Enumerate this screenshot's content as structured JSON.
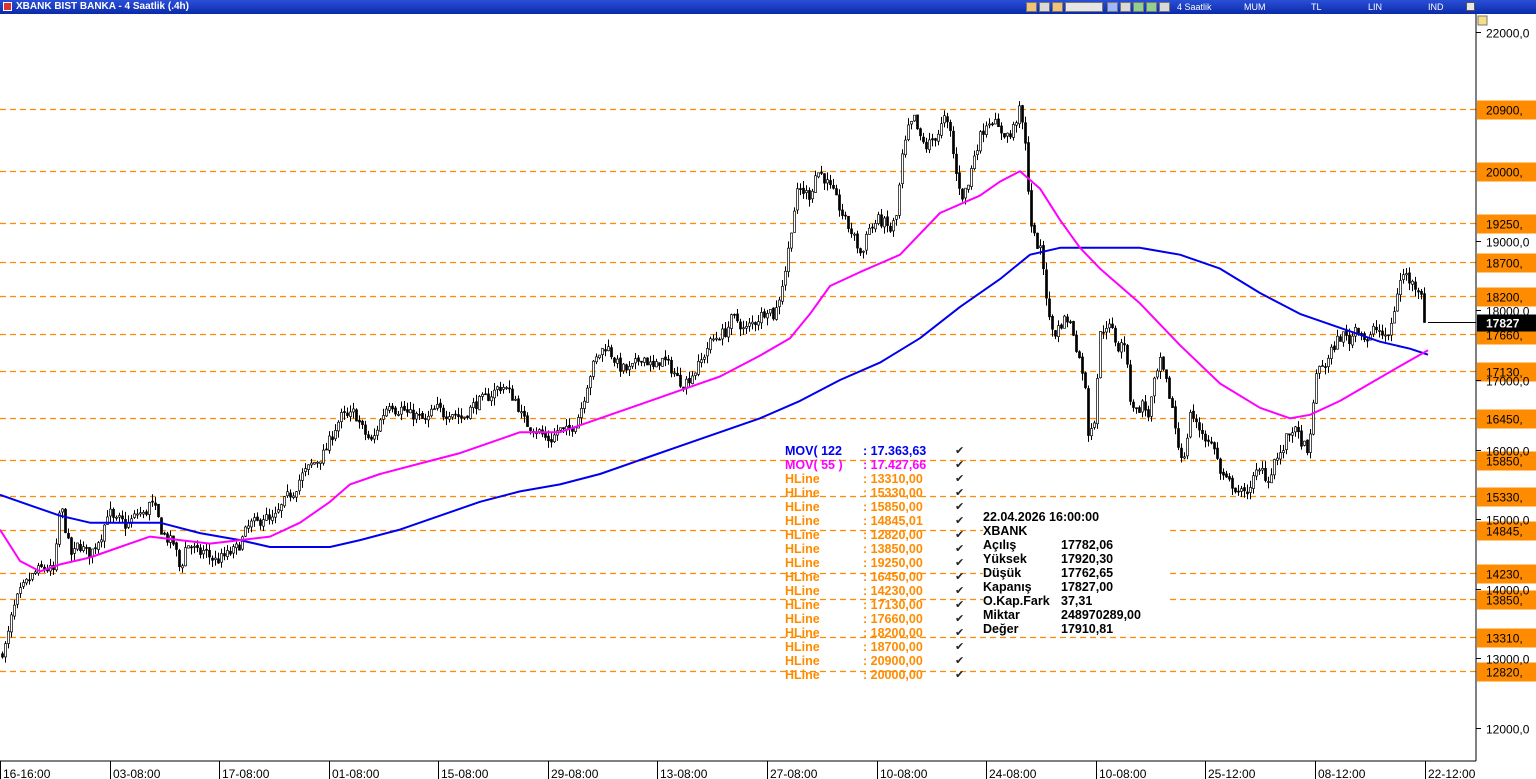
{
  "window": {
    "title": "XBANK BIST BANKA - 4 Saatlik (.4h)",
    "toolbar_labels": [
      "4 Saatlik",
      "MUM",
      "TL",
      "LIN",
      "IND"
    ]
  },
  "chart_data": {
    "type": "candlestick",
    "ylim": [
      11700,
      22150
    ],
    "ticks_right": [
      "22000,0",
      "19000,0",
      "18000,0",
      "17000,0",
      "16000,0",
      "15000,0",
      "14000,0",
      "13000,0",
      "12000,0"
    ],
    "tick_values": [
      22000,
      19000,
      18000,
      17000,
      16000,
      15000,
      14000,
      13000,
      12000
    ],
    "x_labels": [
      "16-16:00",
      "03-08:00",
      "17-08:00",
      "01-08:00",
      "15-08:00",
      "29-08:00",
      "13-08:00",
      "27-08:00",
      "10-08:00",
      "24-08:00",
      "10-08:00",
      "25-12:00",
      "08-12:00",
      "22-12:00"
    ],
    "last_price": {
      "value": 17827,
      "label": "17827"
    },
    "hlines": [
      {
        "value": 20900,
        "label": "20900,"
      },
      {
        "value": 20000,
        "label": "20000,"
      },
      {
        "value": 19250,
        "label": "19250,"
      },
      {
        "value": 18700,
        "label": "18700,"
      },
      {
        "value": 18200,
        "label": "18200,"
      },
      {
        "value": 17660,
        "label": "17660,"
      },
      {
        "value": 17130,
        "label": "17130,"
      },
      {
        "value": 16450,
        "label": "16450,"
      },
      {
        "value": 15850,
        "label": "15850,"
      },
      {
        "value": 15330,
        "label": "15330,"
      },
      {
        "value": 14845,
        "label": "14845,"
      },
      {
        "value": 14230,
        "label": "14230,"
      },
      {
        "value": 13850,
        "label": "13850,"
      },
      {
        "value": 13310,
        "label": "13310,"
      },
      {
        "value": 12820,
        "label": "12820,"
      }
    ],
    "price_path": [
      [
        0,
        13050
      ],
      [
        6,
        13200
      ],
      [
        12,
        13650
      ],
      [
        18,
        13900
      ],
      [
        24,
        14050
      ],
      [
        30,
        14150
      ],
      [
        36,
        14250
      ],
      [
        42,
        14300
      ],
      [
        48,
        14280
      ],
      [
        54,
        14250
      ],
      [
        58,
        14900
      ],
      [
        60,
        15250
      ],
      [
        64,
        14950
      ],
      [
        68,
        14650
      ],
      [
        72,
        14450
      ],
      [
        78,
        14650
      ],
      [
        84,
        14550
      ],
      [
        90,
        14500
      ],
      [
        96,
        14650
      ],
      [
        102,
        14800
      ],
      [
        108,
        15150
      ],
      [
        114,
        14950
      ],
      [
        120,
        15000
      ],
      [
        126,
        14900
      ],
      [
        132,
        15000
      ],
      [
        138,
        15100
      ],
      [
        144,
        15050
      ],
      [
        150,
        15250
      ],
      [
        156,
        15100
      ],
      [
        162,
        14800
      ],
      [
        168,
        14700
      ],
      [
        174,
        14650
      ],
      [
        180,
        14250
      ],
      [
        186,
        14650
      ],
      [
        192,
        14600
      ],
      [
        198,
        14500
      ],
      [
        204,
        14550
      ],
      [
        210,
        14450
      ],
      [
        216,
        14400
      ],
      [
        222,
        14450
      ],
      [
        228,
        14500
      ],
      [
        234,
        14550
      ],
      [
        240,
        14650
      ],
      [
        246,
        14850
      ],
      [
        252,
        14950
      ],
      [
        258,
        14950
      ],
      [
        264,
        15050
      ],
      [
        270,
        14950
      ],
      [
        276,
        15050
      ],
      [
        282,
        15200
      ],
      [
        288,
        15350
      ],
      [
        294,
        15400
      ],
      [
        300,
        15600
      ],
      [
        306,
        15700
      ],
      [
        312,
        15800
      ],
      [
        318,
        15850
      ],
      [
        324,
        15950
      ],
      [
        330,
        16150
      ],
      [
        336,
        16350
      ],
      [
        342,
        16500
      ],
      [
        348,
        16450
      ],
      [
        354,
        16550
      ],
      [
        360,
        16350
      ],
      [
        366,
        16200
      ],
      [
        372,
        16100
      ],
      [
        378,
        16350
      ],
      [
        384,
        16550
      ],
      [
        390,
        16700
      ],
      [
        396,
        16550
      ],
      [
        402,
        16600
      ],
      [
        408,
        16500
      ],
      [
        414,
        16500
      ],
      [
        420,
        16450
      ],
      [
        426,
        16400
      ],
      [
        432,
        16550
      ],
      [
        438,
        16600
      ],
      [
        444,
        16500
      ],
      [
        450,
        16550
      ],
      [
        456,
        16500
      ],
      [
        462,
        16450
      ],
      [
        468,
        16550
      ],
      [
        474,
        16650
      ],
      [
        480,
        16700
      ],
      [
        486,
        16750
      ],
      [
        492,
        16800
      ],
      [
        498,
        16900
      ],
      [
        504,
        16900
      ],
      [
        510,
        16800
      ],
      [
        516,
        16700
      ],
      [
        522,
        16450
      ],
      [
        528,
        16350
      ],
      [
        534,
        16300
      ],
      [
        540,
        16250
      ],
      [
        546,
        16150
      ],
      [
        552,
        16150
      ],
      [
        558,
        16300
      ],
      [
        564,
        16250
      ],
      [
        570,
        16300
      ],
      [
        576,
        16400
      ],
      [
        582,
        16650
      ],
      [
        588,
        17000
      ],
      [
        594,
        17250
      ],
      [
        600,
        17400
      ],
      [
        606,
        17500
      ],
      [
        612,
        17350
      ],
      [
        618,
        17200
      ],
      [
        624,
        17150
      ],
      [
        630,
        17150
      ],
      [
        636,
        17250
      ],
      [
        642,
        17350
      ],
      [
        648,
        17250
      ],
      [
        654,
        17150
      ],
      [
        660,
        17300
      ],
      [
        666,
        17250
      ],
      [
        672,
        17150
      ],
      [
        678,
        17000
      ],
      [
        684,
        16950
      ],
      [
        690,
        17050
      ],
      [
        696,
        17150
      ],
      [
        702,
        17300
      ],
      [
        708,
        17500
      ],
      [
        714,
        17600
      ],
      [
        720,
        17650
      ],
      [
        726,
        17700
      ],
      [
        732,
        17900
      ],
      [
        738,
        17850
      ],
      [
        744,
        17700
      ],
      [
        750,
        17800
      ],
      [
        756,
        17850
      ],
      [
        762,
        17950
      ],
      [
        768,
        18050
      ],
      [
        774,
        17900
      ],
      [
        780,
        18250
      ],
      [
        786,
        18650
      ],
      [
        792,
        19300
      ],
      [
        798,
        19750
      ],
      [
        804,
        19700
      ],
      [
        810,
        19650
      ],
      [
        816,
        20000
      ],
      [
        822,
        19950
      ],
      [
        828,
        19800
      ],
      [
        834,
        19650
      ],
      [
        840,
        19450
      ],
      [
        846,
        19250
      ],
      [
        852,
        19100
      ],
      [
        858,
        18900
      ],
      [
        862,
        18750
      ],
      [
        866,
        19150
      ],
      [
        872,
        19200
      ],
      [
        878,
        19300
      ],
      [
        884,
        19250
      ],
      [
        890,
        19150
      ],
      [
        896,
        19350
      ],
      [
        902,
        20200
      ],
      [
        908,
        20600
      ],
      [
        914,
        20750
      ],
      [
        920,
        20450
      ],
      [
        926,
        20350
      ],
      [
        932,
        20450
      ],
      [
        938,
        20550
      ],
      [
        944,
        20750
      ],
      [
        950,
        20550
      ],
      [
        956,
        19950
      ],
      [
        962,
        19650
      ],
      [
        968,
        19800
      ],
      [
        974,
        20250
      ],
      [
        980,
        20500
      ],
      [
        986,
        20700
      ],
      [
        992,
        20750
      ],
      [
        998,
        20600
      ],
      [
        1004,
        20550
      ],
      [
        1010,
        20500
      ],
      [
        1016,
        20750
      ],
      [
        1020,
        20900
      ],
      [
        1026,
        20250
      ],
      [
        1030,
        19300
      ],
      [
        1034,
        19050
      ],
      [
        1040,
        18850
      ],
      [
        1044,
        18550
      ],
      [
        1048,
        17900
      ],
      [
        1054,
        17650
      ],
      [
        1060,
        17800
      ],
      [
        1066,
        17900
      ],
      [
        1072,
        17750
      ],
      [
        1078,
        17350
      ],
      [
        1084,
        17050
      ],
      [
        1088,
        16250
      ],
      [
        1094,
        16450
      ],
      [
        1100,
        17650
      ],
      [
        1106,
        17800
      ],
      [
        1112,
        17700
      ],
      [
        1118,
        17450
      ],
      [
        1124,
        17550
      ],
      [
        1130,
        16750
      ],
      [
        1136,
        16550
      ],
      [
        1142,
        16650
      ],
      [
        1148,
        16500
      ],
      [
        1154,
        16950
      ],
      [
        1160,
        17250
      ],
      [
        1166,
        16950
      ],
      [
        1172,
        16600
      ],
      [
        1178,
        16050
      ],
      [
        1184,
        15850
      ],
      [
        1190,
        16550
      ],
      [
        1196,
        16350
      ],
      [
        1202,
        16250
      ],
      [
        1208,
        16100
      ],
      [
        1214,
        16050
      ],
      [
        1220,
        15650
      ],
      [
        1226,
        15550
      ],
      [
        1232,
        15500
      ],
      [
        1238,
        15400
      ],
      [
        1244,
        15350
      ],
      [
        1250,
        15500
      ],
      [
        1256,
        15650
      ],
      [
        1262,
        15700
      ],
      [
        1268,
        15550
      ],
      [
        1274,
        15850
      ],
      [
        1280,
        15900
      ],
      [
        1286,
        16150
      ],
      [
        1292,
        16300
      ],
      [
        1298,
        16200
      ],
      [
        1304,
        16050
      ],
      [
        1308,
        15850
      ],
      [
        1314,
        16900
      ],
      [
        1320,
        17250
      ],
      [
        1326,
        17200
      ],
      [
        1332,
        17450
      ],
      [
        1338,
        17600
      ],
      [
        1344,
        17650
      ],
      [
        1350,
        17550
      ],
      [
        1356,
        17800
      ],
      [
        1362,
        17650
      ],
      [
        1368,
        17550
      ],
      [
        1374,
        17750
      ],
      [
        1380,
        17700
      ],
      [
        1386,
        17550
      ],
      [
        1392,
        17850
      ],
      [
        1398,
        18350
      ],
      [
        1404,
        18550
      ],
      [
        1410,
        18400
      ],
      [
        1416,
        18350
      ],
      [
        1422,
        18250
      ],
      [
        1426,
        17830
      ]
    ],
    "ma122_path": [
      [
        0,
        15350
      ],
      [
        30,
        15200
      ],
      [
        60,
        15050
      ],
      [
        90,
        14950
      ],
      [
        120,
        14950
      ],
      [
        160,
        14950
      ],
      [
        200,
        14800
      ],
      [
        240,
        14700
      ],
      [
        270,
        14600
      ],
      [
        300,
        14600
      ],
      [
        330,
        14600
      ],
      [
        360,
        14700
      ],
      [
        400,
        14850
      ],
      [
        440,
        15050
      ],
      [
        480,
        15250
      ],
      [
        520,
        15400
      ],
      [
        560,
        15500
      ],
      [
        600,
        15650
      ],
      [
        640,
        15850
      ],
      [
        680,
        16050
      ],
      [
        720,
        16250
      ],
      [
        760,
        16450
      ],
      [
        800,
        16700
      ],
      [
        840,
        17000
      ],
      [
        880,
        17250
      ],
      [
        920,
        17600
      ],
      [
        960,
        18050
      ],
      [
        1000,
        18450
      ],
      [
        1030,
        18800
      ],
      [
        1060,
        18900
      ],
      [
        1100,
        18900
      ],
      [
        1140,
        18900
      ],
      [
        1180,
        18800
      ],
      [
        1220,
        18600
      ],
      [
        1260,
        18250
      ],
      [
        1300,
        17950
      ],
      [
        1340,
        17750
      ],
      [
        1380,
        17550
      ],
      [
        1410,
        17450
      ],
      [
        1428,
        17363
      ]
    ],
    "ma55_path": [
      [
        0,
        14850
      ],
      [
        20,
        14400
      ],
      [
        40,
        14250
      ],
      [
        60,
        14350
      ],
      [
        90,
        14450
      ],
      [
        120,
        14600
      ],
      [
        150,
        14750
      ],
      [
        180,
        14700
      ],
      [
        210,
        14650
      ],
      [
        240,
        14700
      ],
      [
        270,
        14750
      ],
      [
        300,
        14950
      ],
      [
        330,
        15250
      ],
      [
        350,
        15500
      ],
      [
        380,
        15650
      ],
      [
        420,
        15800
      ],
      [
        460,
        15950
      ],
      [
        500,
        16150
      ],
      [
        520,
        16250
      ],
      [
        560,
        16250
      ],
      [
        600,
        16450
      ],
      [
        640,
        16650
      ],
      [
        680,
        16850
      ],
      [
        720,
        17050
      ],
      [
        760,
        17350
      ],
      [
        790,
        17600
      ],
      [
        810,
        17950
      ],
      [
        830,
        18350
      ],
      [
        860,
        18550
      ],
      [
        900,
        18800
      ],
      [
        940,
        19400
      ],
      [
        980,
        19650
      ],
      [
        1000,
        19850
      ],
      [
        1020,
        20000
      ],
      [
        1040,
        19750
      ],
      [
        1060,
        19300
      ],
      [
        1080,
        18900
      ],
      [
        1100,
        18600
      ],
      [
        1140,
        18100
      ],
      [
        1180,
        17500
      ],
      [
        1220,
        16950
      ],
      [
        1260,
        16600
      ],
      [
        1290,
        16450
      ],
      [
        1310,
        16500
      ],
      [
        1340,
        16700
      ],
      [
        1370,
        16950
      ],
      [
        1400,
        17200
      ],
      [
        1428,
        17428
      ]
    ]
  },
  "legend": [
    {
      "name": "MOV( 122",
      "value": ": 17.363,63",
      "color": "#0000ee"
    },
    {
      "name": "MOV( 55 )",
      "value": ": 17.427,66",
      "color": "#ff00ff"
    },
    {
      "name": "HLine",
      "value": ": 13310,00",
      "color": "#ff8c00"
    },
    {
      "name": "HLine",
      "value": ": 15330,00",
      "color": "#ff8c00"
    },
    {
      "name": "HLine",
      "value": ": 15850,00",
      "color": "#ff8c00"
    },
    {
      "name": "HLine",
      "value": ": 14845,01",
      "color": "#ff8c00"
    },
    {
      "name": "HLine",
      "value": ": 12820,00",
      "color": "#ff8c00"
    },
    {
      "name": "HLine",
      "value": ": 13850,00",
      "color": "#ff8c00"
    },
    {
      "name": "HLine",
      "value": ": 19250,00",
      "color": "#ff8c00"
    },
    {
      "name": "HLine",
      "value": ": 16450,00",
      "color": "#ff8c00"
    },
    {
      "name": "HLine",
      "value": ": 14230,00",
      "color": "#ff8c00"
    },
    {
      "name": "HLine",
      "value": ": 17130,00",
      "color": "#ff8c00"
    },
    {
      "name": "HLine",
      "value": ": 17660,00",
      "color": "#ff8c00"
    },
    {
      "name": "HLine",
      "value": ": 18200,00",
      "color": "#ff8c00"
    },
    {
      "name": "HLine",
      "value": ": 18700,00",
      "color": "#ff8c00"
    },
    {
      "name": "HLine",
      "value": ": 20900,00",
      "color": "#ff8c00"
    },
    {
      "name": "HLine",
      "value": ": 20000,00",
      "color": "#ff8c00"
    }
  ],
  "info": {
    "datetime": "22.04.2026  16:00:00",
    "symbol": "XBANK",
    "rows": [
      {
        "label": "Açılış",
        "value": "17782,06"
      },
      {
        "label": "Yüksek",
        "value": "17920,30"
      },
      {
        "label": "Düşük",
        "value": "17762,65"
      },
      {
        "label": "Kapanış",
        "value": "17827,00"
      },
      {
        "label": "O.Kap.Fark",
        "value": "37,31"
      },
      {
        "label": "Miktar",
        "value": "248970289,00"
      },
      {
        "label": "Değer",
        "value": "17910,81"
      }
    ]
  },
  "colors": {
    "hline": "#ff8c00",
    "ma122": "#0000ee",
    "ma55": "#ff00ff",
    "candle": "#000000"
  }
}
